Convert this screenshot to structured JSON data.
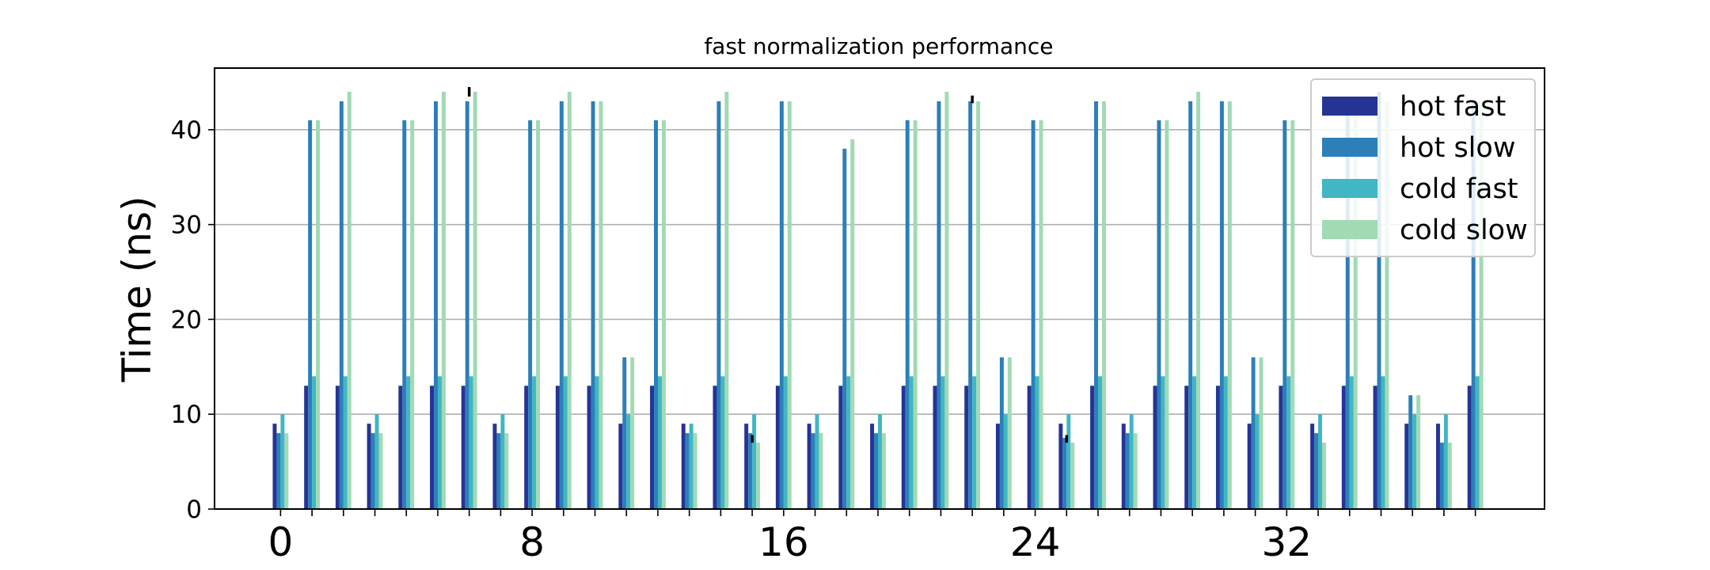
{
  "chart_data": {
    "type": "bar",
    "title": "fast normalization performance",
    "xlabel": "",
    "ylabel": "Time (ns)",
    "ylim": [
      0,
      46.5
    ],
    "xlim": [
      -2.1,
      40.2
    ],
    "grid": "y",
    "legend_position": "top-right",
    "yticks": [
      0,
      10,
      20,
      30,
      40
    ],
    "xticks": [
      0,
      8,
      16,
      24,
      32
    ],
    "x": [
      0,
      1,
      2,
      3,
      4,
      5,
      6,
      7,
      8,
      9,
      10,
      11,
      12,
      13,
      14,
      15,
      16,
      17,
      18,
      19,
      20,
      21,
      22,
      23,
      24,
      25,
      26,
      27,
      28,
      29,
      30,
      31,
      32,
      33,
      34,
      35,
      36,
      37,
      38
    ],
    "series": [
      {
        "name": "hot fast",
        "color": "#253494",
        "values": [
          9,
          13,
          13,
          9,
          13,
          13,
          13,
          9,
          13,
          13,
          13,
          9,
          13,
          9,
          13,
          9,
          13,
          9,
          13,
          9,
          13,
          13,
          13,
          9,
          13,
          9,
          13,
          9,
          13,
          13,
          13,
          9,
          13,
          9,
          13,
          13,
          9,
          9,
          13
        ]
      },
      {
        "name": "hot slow",
        "color": "#2c7fb8",
        "values": [
          8,
          41,
          43,
          8,
          41,
          43,
          43,
          8,
          41,
          43,
          43,
          16,
          41,
          8,
          43,
          8,
          43,
          8,
          38,
          8,
          41,
          43,
          43,
          16,
          41,
          7.5,
          43,
          8,
          41,
          43,
          43,
          16,
          41,
          8,
          43,
          44,
          12,
          7,
          43
        ]
      },
      {
        "name": "cold fast",
        "color": "#41b6c4",
        "values": [
          10,
          14,
          14,
          10,
          14,
          14,
          14,
          10,
          14,
          14,
          14,
          10,
          14,
          9,
          14,
          10,
          14,
          10,
          14,
          10,
          14,
          14,
          14,
          10,
          14,
          10,
          14,
          10,
          14,
          14,
          14,
          10,
          14,
          10,
          14,
          14,
          10,
          10,
          14
        ]
      },
      {
        "name": "cold slow",
        "color": "#a1dab4",
        "values": [
          8,
          41,
          44,
          8,
          41,
          44,
          44,
          8,
          41,
          44,
          43,
          16,
          41,
          8,
          44,
          7,
          43,
          8,
          39,
          8,
          41,
          44,
          43,
          16,
          41,
          7,
          43,
          8,
          41,
          44,
          43,
          16,
          41,
          7,
          42,
          43,
          12,
          7,
          43
        ]
      }
    ],
    "error_marks": [
      {
        "x": 6,
        "low": 43.5,
        "high": 44.5
      },
      {
        "x": 22,
        "low": 42.8,
        "high": 43.6
      },
      {
        "x": 15,
        "low": 7,
        "high": 7.8
      },
      {
        "x": 25,
        "low": 7,
        "high": 7.8
      }
    ]
  }
}
